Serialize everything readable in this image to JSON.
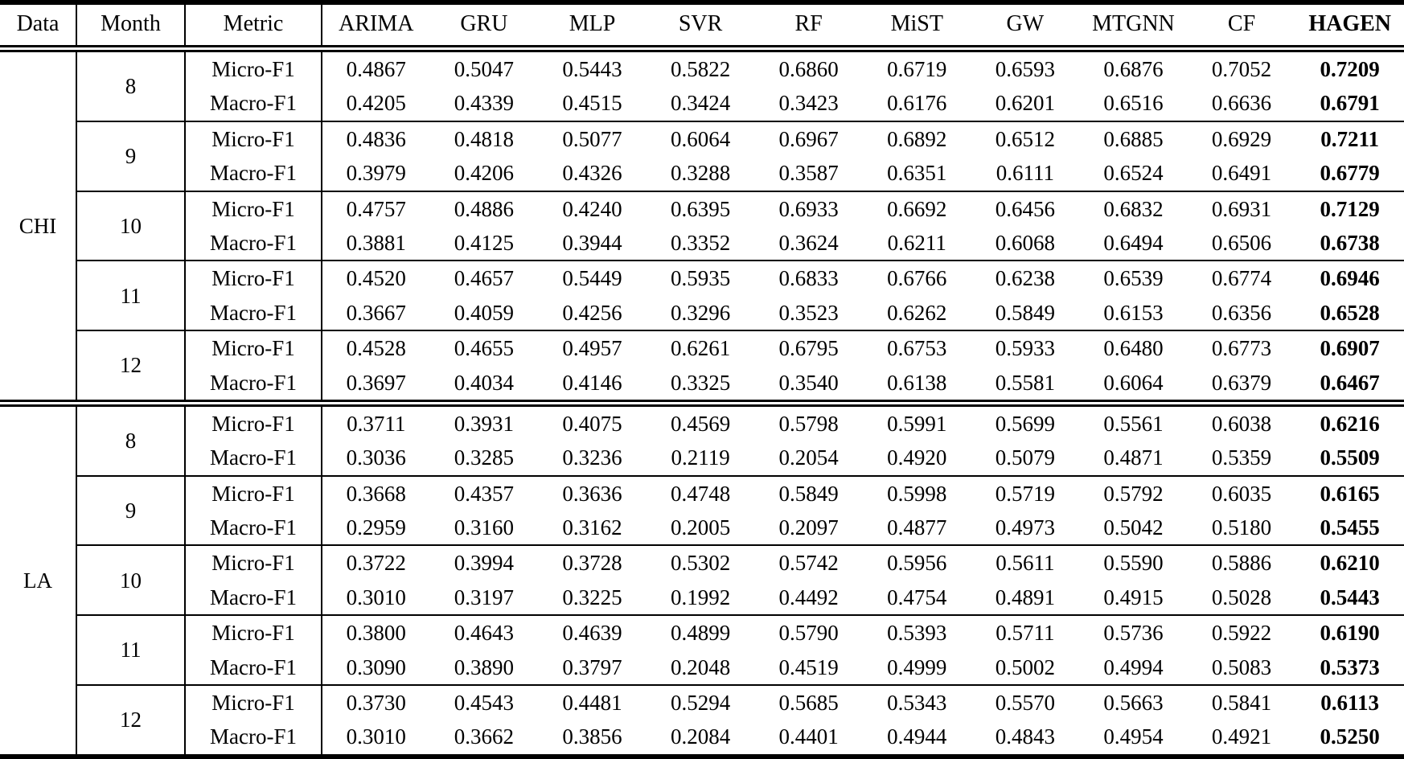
{
  "table": {
    "columns": [
      "Data",
      "Month",
      "Metric",
      "ARIMA",
      "GRU",
      "MLP",
      "SVR",
      "RF",
      "MiST",
      "GW",
      "MTGNN",
      "CF",
      "HAGEN"
    ],
    "bold_column": "HAGEN",
    "text_color": "#000000",
    "background_color": "#ffffff",
    "groups": [
      {
        "data": "CHI",
        "months": [
          {
            "month": "8",
            "rows": [
              {
                "metric": "Micro-F1",
                "values": [
                  "0.4867",
                  "0.5047",
                  "0.5443",
                  "0.5822",
                  "0.6860",
                  "0.6719",
                  "0.6593",
                  "0.6876",
                  "0.7052",
                  "0.7209"
                ]
              },
              {
                "metric": "Macro-F1",
                "values": [
                  "0.4205",
                  "0.4339",
                  "0.4515",
                  "0.3424",
                  "0.3423",
                  "0.6176",
                  "0.6201",
                  "0.6516",
                  "0.6636",
                  "0.6791"
                ]
              }
            ]
          },
          {
            "month": "9",
            "rows": [
              {
                "metric": "Micro-F1",
                "values": [
                  "0.4836",
                  "0.4818",
                  "0.5077",
                  "0.6064",
                  "0.6967",
                  "0.6892",
                  "0.6512",
                  "0.6885",
                  "0.6929",
                  "0.7211"
                ]
              },
              {
                "metric": "Macro-F1",
                "values": [
                  "0.3979",
                  "0.4206",
                  "0.4326",
                  "0.3288",
                  "0.3587",
                  "0.6351",
                  "0.6111",
                  "0.6524",
                  "0.6491",
                  "0.6779"
                ]
              }
            ]
          },
          {
            "month": "10",
            "rows": [
              {
                "metric": "Micro-F1",
                "values": [
                  "0.4757",
                  "0.4886",
                  "0.4240",
                  "0.6395",
                  "0.6933",
                  "0.6692",
                  "0.6456",
                  "0.6832",
                  "0.6931",
                  "0.7129"
                ]
              },
              {
                "metric": "Macro-F1",
                "values": [
                  "0.3881",
                  "0.4125",
                  "0.3944",
                  "0.3352",
                  "0.3624",
                  "0.6211",
                  "0.6068",
                  "0.6494",
                  "0.6506",
                  "0.6738"
                ]
              }
            ]
          },
          {
            "month": "11",
            "rows": [
              {
                "metric": "Micro-F1",
                "values": [
                  "0.4520",
                  "0.4657",
                  "0.5449",
                  "0.5935",
                  "0.6833",
                  "0.6766",
                  "0.6238",
                  "0.6539",
                  "0.6774",
                  "0.6946"
                ]
              },
              {
                "metric": "Macro-F1",
                "values": [
                  "0.3667",
                  "0.4059",
                  "0.4256",
                  "0.3296",
                  "0.3523",
                  "0.6262",
                  "0.5849",
                  "0.6153",
                  "0.6356",
                  "0.6528"
                ]
              }
            ]
          },
          {
            "month": "12",
            "rows": [
              {
                "metric": "Micro-F1",
                "values": [
                  "0.4528",
                  "0.4655",
                  "0.4957",
                  "0.6261",
                  "0.6795",
                  "0.6753",
                  "0.5933",
                  "0.6480",
                  "0.6773",
                  "0.6907"
                ]
              },
              {
                "metric": "Macro-F1",
                "values": [
                  "0.3697",
                  "0.4034",
                  "0.4146",
                  "0.3325",
                  "0.3540",
                  "0.6138",
                  "0.5581",
                  "0.6064",
                  "0.6379",
                  "0.6467"
                ]
              }
            ]
          }
        ]
      },
      {
        "data": "LA",
        "months": [
          {
            "month": "8",
            "rows": [
              {
                "metric": "Micro-F1",
                "values": [
                  "0.3711",
                  "0.3931",
                  "0.4075",
                  "0.4569",
                  "0.5798",
                  "0.5991",
                  "0.5699",
                  "0.5561",
                  "0.6038",
                  "0.6216"
                ]
              },
              {
                "metric": "Macro-F1",
                "values": [
                  "0.3036",
                  "0.3285",
                  "0.3236",
                  "0.2119",
                  "0.2054",
                  "0.4920",
                  "0.5079",
                  "0.4871",
                  "0.5359",
                  "0.5509"
                ]
              }
            ]
          },
          {
            "month": "9",
            "rows": [
              {
                "metric": "Micro-F1",
                "values": [
                  "0.3668",
                  "0.4357",
                  "0.3636",
                  "0.4748",
                  "0.5849",
                  "0.5998",
                  "0.5719",
                  "0.5792",
                  "0.6035",
                  "0.6165"
                ]
              },
              {
                "metric": "Macro-F1",
                "values": [
                  "0.2959",
                  "0.3160",
                  "0.3162",
                  "0.2005",
                  "0.2097",
                  "0.4877",
                  "0.4973",
                  "0.5042",
                  "0.5180",
                  "0.5455"
                ]
              }
            ]
          },
          {
            "month": "10",
            "rows": [
              {
                "metric": "Micro-F1",
                "values": [
                  "0.3722",
                  "0.3994",
                  "0.3728",
                  "0.5302",
                  "0.5742",
                  "0.5956",
                  "0.5611",
                  "0.5590",
                  "0.5886",
                  "0.6210"
                ]
              },
              {
                "metric": "Macro-F1",
                "values": [
                  "0.3010",
                  "0.3197",
                  "0.3225",
                  "0.1992",
                  "0.4492",
                  "0.4754",
                  "0.4891",
                  "0.4915",
                  "0.5028",
                  "0.5443"
                ]
              }
            ]
          },
          {
            "month": "11",
            "rows": [
              {
                "metric": "Micro-F1",
                "values": [
                  "0.3800",
                  "0.4643",
                  "0.4639",
                  "0.4899",
                  "0.5790",
                  "0.5393",
                  "0.5711",
                  "0.5736",
                  "0.5922",
                  "0.6190"
                ]
              },
              {
                "metric": "Macro-F1",
                "values": [
                  "0.3090",
                  "0.3890",
                  "0.3797",
                  "0.2048",
                  "0.4519",
                  "0.4999",
                  "0.5002",
                  "0.4994",
                  "0.5083",
                  "0.5373"
                ]
              }
            ]
          },
          {
            "month": "12",
            "rows": [
              {
                "metric": "Micro-F1",
                "values": [
                  "0.3730",
                  "0.4543",
                  "0.4481",
                  "0.5294",
                  "0.5685",
                  "0.5343",
                  "0.5570",
                  "0.5663",
                  "0.5841",
                  "0.6113"
                ]
              },
              {
                "metric": "Macro-F1",
                "values": [
                  "0.3010",
                  "0.3662",
                  "0.3856",
                  "0.2084",
                  "0.4401",
                  "0.4944",
                  "0.4843",
                  "0.4954",
                  "0.4921",
                  "0.5250"
                ]
              }
            ]
          }
        ]
      }
    ]
  }
}
